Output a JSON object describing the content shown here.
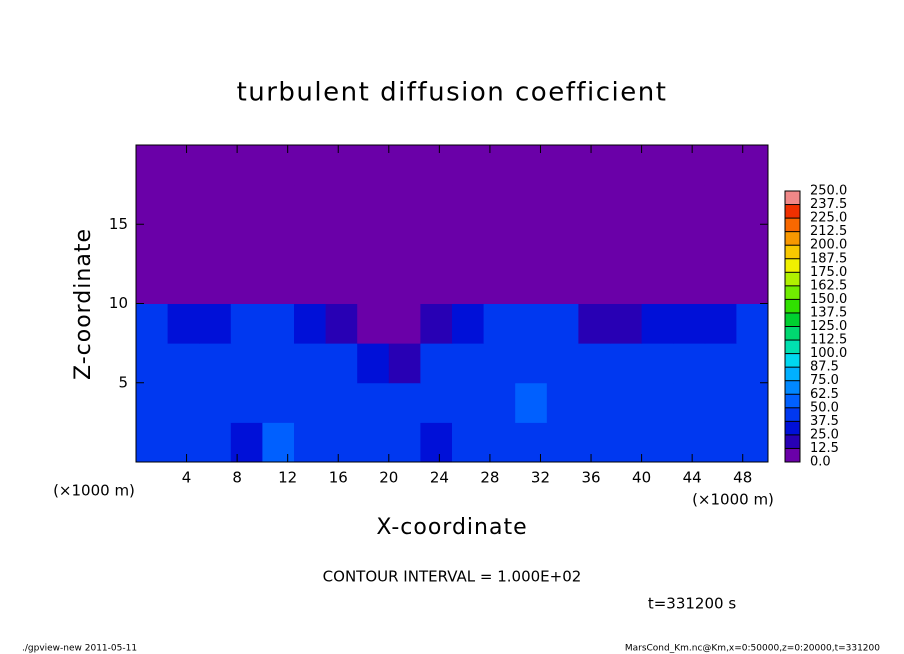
{
  "chart_data": {
    "type": "heatmap",
    "title": "turbulent diffusion coefficient",
    "x_label": "X-coordinate",
    "y_label": "Z-coordinate",
    "x_unit_label": "(×1000 m)",
    "y_unit_label": "(×1000 m)",
    "contour_note": "CONTOUR INTERVAL = 1.000E+02",
    "time_note": "t=331200 s",
    "footer_left": "./gpview-new  2011-05-11",
    "footer_right": "MarsCond_Km.nc@Km,x=0:50000,z=0:20000,t=331200",
    "xlim": [
      0,
      50
    ],
    "ylim": [
      0,
      20
    ],
    "xticks": [
      4,
      8,
      12,
      16,
      20,
      24,
      28,
      32,
      36,
      40,
      44,
      48
    ],
    "yticks": [
      5,
      10,
      15
    ],
    "x_edges": [
      0,
      2.5,
      5,
      7.5,
      10,
      12.5,
      15,
      17.5,
      20,
      22.5,
      25,
      27.5,
      30,
      32.5,
      35,
      37.5,
      40,
      42.5,
      45,
      47.5,
      50
    ],
    "z_edges": [
      0,
      2.5,
      5,
      7.5,
      10,
      12.5,
      15,
      17.5,
      20
    ],
    "values": [
      [
        37.5,
        37.5,
        37.5,
        25,
        50,
        37.5,
        37.5,
        37.5,
        37.5,
        25,
        37.5,
        37.5,
        37.5,
        37.5,
        37.5,
        37.5,
        37.5,
        37.5,
        37.5,
        37.5
      ],
      [
        37.5,
        37.5,
        37.5,
        37.5,
        37.5,
        37.5,
        37.5,
        37.5,
        37.5,
        37.5,
        37.5,
        37.5,
        50,
        37.5,
        37.5,
        37.5,
        37.5,
        37.5,
        37.5,
        37.5
      ],
      [
        37.5,
        37.5,
        37.5,
        37.5,
        37.5,
        37.5,
        37.5,
        25,
        12.5,
        37.5,
        37.5,
        37.5,
        37.5,
        37.5,
        37.5,
        37.5,
        37.5,
        37.5,
        37.5,
        37.5
      ],
      [
        37.5,
        25,
        25,
        37.5,
        37.5,
        25,
        12.5,
        0,
        0,
        12.5,
        25,
        37.5,
        37.5,
        37.5,
        12.5,
        12.5,
        25,
        25,
        25,
        37.5
      ],
      [
        0,
        0,
        0,
        0,
        0,
        0,
        0,
        0,
        0,
        0,
        0,
        0,
        0,
        0,
        0,
        0,
        0,
        0,
        0,
        0
      ],
      [
        0,
        0,
        0,
        0,
        0,
        0,
        0,
        0,
        0,
        0,
        0,
        0,
        0,
        0,
        0,
        0,
        0,
        0,
        0,
        0
      ],
      [
        0,
        0,
        0,
        0,
        0,
        0,
        0,
        0,
        0,
        0,
        0,
        0,
        0,
        0,
        0,
        0,
        0,
        0,
        0,
        0
      ],
      [
        0,
        0,
        0,
        0,
        0,
        0,
        0,
        0,
        0,
        0,
        0,
        0,
        0,
        0,
        0,
        0,
        0,
        0,
        0,
        0
      ]
    ],
    "colorbar_lim": [
      0,
      250
    ],
    "colorbar_ticks": [
      {
        "value": 0,
        "label": "0.0"
      },
      {
        "value": 12.5,
        "label": "12.5"
      },
      {
        "value": 25,
        "label": "25.0"
      },
      {
        "value": 37.5,
        "label": "37.5"
      },
      {
        "value": 50,
        "label": "50.0"
      },
      {
        "value": 62.5,
        "label": "62.5"
      },
      {
        "value": 75,
        "label": "75.0"
      },
      {
        "value": 87.5,
        "label": "87.5"
      },
      {
        "value": 100,
        "label": "100.0"
      },
      {
        "value": 112.5,
        "label": "112.5"
      },
      {
        "value": 125,
        "label": "125.0"
      },
      {
        "value": 137.5,
        "label": "137.5"
      },
      {
        "value": 150,
        "label": "150.0"
      },
      {
        "value": 162.5,
        "label": "162.5"
      },
      {
        "value": 175,
        "label": "175.0"
      },
      {
        "value": 187.5,
        "label": "187.5"
      },
      {
        "value": 200,
        "label": "200.0"
      },
      {
        "value": 212.5,
        "label": "212.5"
      },
      {
        "value": 225,
        "label": "225.0"
      },
      {
        "value": 237.5,
        "label": "237.5"
      },
      {
        "value": 250,
        "label": "250.0"
      }
    ],
    "colors": [
      "#6a00a8",
      "#2800b4",
      "#0010d8",
      "#0038f0",
      "#0060ff",
      "#0088ff",
      "#00b0ff",
      "#00d8f0",
      "#00e0b0",
      "#00d870",
      "#00d030",
      "#30e000",
      "#70ec00",
      "#b0f000",
      "#f0f000",
      "#f8c800",
      "#f89800",
      "#f86800",
      "#f03000",
      "#f08888"
    ]
  }
}
